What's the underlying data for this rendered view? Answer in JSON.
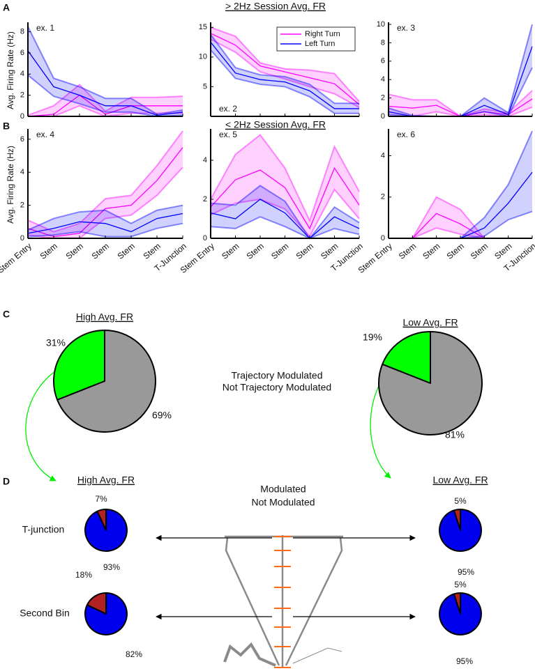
{
  "panel_labels": [
    "A",
    "B",
    "C",
    "D"
  ],
  "row_titles": [
    "> 2Hz Session Avg. FR",
    "< 2Hz Session Avg. FR"
  ],
  "panel_c": {
    "legend": {
      "names": [
        "Trajectory Modulated",
        "Not Trajectory Modulated"
      ],
      "colors": [
        "#1fbf1f",
        "#8c8c8c"
      ]
    }
  },
  "panel_d": {
    "column_titles": [
      "High Avg. FR",
      "Low Avg. FR"
    ],
    "row_labels": [
      "T-junction",
      "Second Bin"
    ],
    "legend": {
      "names": [
        "Modulated",
        "Not Modulated"
      ],
      "colors": [
        "#b22222",
        "#0000ee"
      ]
    }
  },
  "chart_data": [
    {
      "type": "line",
      "annotation": "ex. 1",
      "ylabel": "Avg. Firing Rate (Hz)",
      "categories": [
        null,
        null,
        null,
        null,
        null,
        null,
        null
      ],
      "ylim": [
        0,
        8.7
      ],
      "yticks": [
        0,
        2,
        4,
        6,
        8
      ],
      "series": [
        {
          "color": "#ff00ff",
          "values": [
            0,
            0.2,
            2.0,
            0.2,
            1.0,
            1.0,
            1.0
          ],
          "lower": [
            0,
            0,
            1.0,
            0,
            0.3,
            0.3,
            0.3
          ],
          "upper": [
            0.1,
            1.0,
            3.0,
            0.5,
            1.8,
            1.8,
            1.9
          ]
        },
        {
          "color": "#0000ff",
          "values": [
            6.2,
            2.8,
            2.0,
            1.0,
            1.0,
            0.1,
            0.4
          ],
          "lower": [
            3.9,
            1.9,
            1.2,
            0.4,
            0.4,
            0,
            0.1
          ],
          "upper": [
            8.5,
            3.6,
            2.8,
            1.7,
            1.7,
            0.2,
            0.6
          ]
        }
      ]
    },
    {
      "type": "line",
      "annotation": "ex. 2",
      "categories": [
        null,
        null,
        null,
        null,
        null,
        null,
        null
      ],
      "ylim": [
        0,
        15.5
      ],
      "yticks": [
        5,
        10,
        15
      ],
      "series": [
        {
          "name": "Right Turn",
          "color": "#ff00ff",
          "values": [
            14,
            12,
            8.5,
            7.5,
            6.5,
            5.5,
            2
          ],
          "lower": [
            13,
            10.8,
            7.5,
            6.3,
            5,
            3.8,
            1.5
          ],
          "upper": [
            15,
            13.5,
            9,
            8,
            7.8,
            7.2,
            2.5
          ]
        },
        {
          "name": "Left Turn",
          "color": "#0000ff",
          "values": [
            12.5,
            7.3,
            6.2,
            5.8,
            4.3,
            1.3,
            1.3
          ],
          "lower": [
            11.2,
            6.4,
            5.4,
            5,
            3.3,
            0.5,
            0.5
          ],
          "upper": [
            13.8,
            8.2,
            7,
            6.7,
            5.4,
            2.2,
            2.2
          ]
        }
      ]
    },
    {
      "type": "line",
      "annotation": "ex. 3",
      "categories": [
        null,
        null,
        null,
        null,
        null,
        null,
        null
      ],
      "ylim": [
        0,
        10
      ],
      "yticks": [
        0,
        2,
        4,
        6,
        8,
        10
      ],
      "series": [
        {
          "color": "#ff00ff",
          "values": [
            1.1,
            0.9,
            1.2,
            0,
            0.5,
            0.2,
            1.9
          ],
          "lower": [
            0,
            0,
            0.5,
            0,
            0.2,
            0,
            1.0
          ],
          "upper": [
            2.4,
            1.8,
            1.8,
            0,
            0.8,
            0.4,
            2.8
          ]
        },
        {
          "color": "#0000ff",
          "values": [
            0.5,
            0,
            0,
            0,
            1.2,
            0.2,
            7.6
          ],
          "lower": [
            0.2,
            0,
            0,
            0,
            0.5,
            0,
            5.3
          ],
          "upper": [
            0.9,
            0.1,
            0,
            0,
            2.0,
            0.4,
            10
          ]
        }
      ]
    },
    {
      "type": "line",
      "annotation": "ex. 4",
      "ylabel": "Avg. Firing Rate (Hz)",
      "categories": [
        "Stem Entry",
        "Stem",
        "Stem",
        "Stem",
        "Stem",
        "Stem",
        "T-Junction"
      ],
      "ylim": [
        0,
        6.5
      ],
      "yticks": [
        0,
        2,
        4,
        6
      ],
      "series": [
        {
          "color": "#ff00ff",
          "values": [
            0.6,
            0.1,
            0.3,
            1.8,
            2.0,
            3.5,
            5.5
          ],
          "lower": [
            0.2,
            0,
            0,
            1.2,
            1.4,
            2.6,
            4.3
          ],
          "upper": [
            1.1,
            0.4,
            0.9,
            2.4,
            2.6,
            4.4,
            6.5
          ]
        },
        {
          "color": "#0000ff",
          "values": [
            0.3,
            0.6,
            1.0,
            0.9,
            0.4,
            1.2,
            1.5
          ],
          "lower": [
            0.1,
            0.2,
            0.4,
            0.1,
            0.1,
            0.6,
            0.9
          ],
          "upper": [
            0.5,
            1.2,
            1.6,
            1.7,
            0.9,
            1.7,
            2.0
          ]
        }
      ]
    },
    {
      "type": "line",
      "annotation": "ex. 5",
      "categories": [
        "Stem Entry",
        "Stem",
        "Stem",
        "Stem",
        "Stem",
        "Stem",
        "T-Junction"
      ],
      "ylim": [
        0,
        5.5
      ],
      "yticks": [
        0,
        2,
        4
      ],
      "series": [
        {
          "color": "#ff00ff",
          "values": [
            1.6,
            3.0,
            3.5,
            2.6,
            0.5,
            3.6,
            1.7
          ],
          "lower": [
            1.2,
            1.8,
            2.0,
            1.5,
            0.1,
            2.5,
            1.0
          ],
          "upper": [
            2.0,
            4.3,
            5.3,
            3.6,
            0.9,
            4.7,
            2.4
          ]
        },
        {
          "color": "#0000ff",
          "values": [
            1.3,
            1.0,
            2.0,
            1.3,
            0,
            1.1,
            0.5
          ],
          "lower": [
            0.6,
            0.5,
            1.1,
            0.6,
            0,
            0.5,
            0.2
          ],
          "upper": [
            1.8,
            1.7,
            2.7,
            1.9,
            0,
            1.6,
            0.8
          ]
        }
      ]
    },
    {
      "type": "line",
      "annotation": "ex. 6",
      "categories": [
        "Stem Entry",
        "Stem",
        "Stem",
        "Stem",
        "Stem",
        "Stem",
        "T-Junction"
      ],
      "ylim": [
        0,
        5.2
      ],
      "yticks": [
        0,
        2,
        4
      ],
      "series": [
        {
          "color": "#ff00ff",
          "values": [
            null,
            0,
            1.2,
            0.7,
            0,
            null,
            null
          ],
          "lower": [
            null,
            0,
            0.5,
            0.2,
            0,
            null,
            null
          ],
          "upper": [
            null,
            0,
            2.0,
            1.4,
            0,
            null,
            null
          ]
        },
        {
          "color": "#0000ff",
          "values": [
            null,
            null,
            null,
            0,
            0.5,
            1.7,
            3.2
          ],
          "lower": [
            null,
            null,
            null,
            0,
            0.1,
            0.9,
            1.3
          ],
          "upper": [
            null,
            null,
            null,
            0,
            1.0,
            2.6,
            5.2
          ]
        }
      ]
    },
    {
      "type": "pie",
      "title": "High Avg. FR",
      "values": [
        31,
        69
      ],
      "value_labels": [
        "31%",
        "69%"
      ],
      "colors": [
        "#00ff00",
        "#999999"
      ]
    },
    {
      "type": "pie",
      "title": "Low Avg. FR",
      "values": [
        19,
        81
      ],
      "value_labels": [
        "19%",
        "81%"
      ],
      "colors": [
        "#00ff00",
        "#999999"
      ]
    },
    {
      "type": "pie",
      "values": [
        7,
        93
      ],
      "value_labels": [
        "7%",
        "93%"
      ],
      "colors": [
        "#b22222",
        "#0000ee"
      ]
    },
    {
      "type": "pie",
      "values": [
        18,
        82
      ],
      "value_labels": [
        "18%",
        "82%"
      ],
      "colors": [
        "#b22222",
        "#0000ee"
      ]
    },
    {
      "type": "pie",
      "values": [
        5,
        95
      ],
      "value_labels": [
        "5%",
        "95%"
      ],
      "colors": [
        "#b22222",
        "#0000ee"
      ]
    },
    {
      "type": "pie",
      "values": [
        5,
        95
      ],
      "value_labels": [
        "5%",
        "95%"
      ],
      "colors": [
        "#b22222",
        "#0000ee"
      ]
    }
  ]
}
